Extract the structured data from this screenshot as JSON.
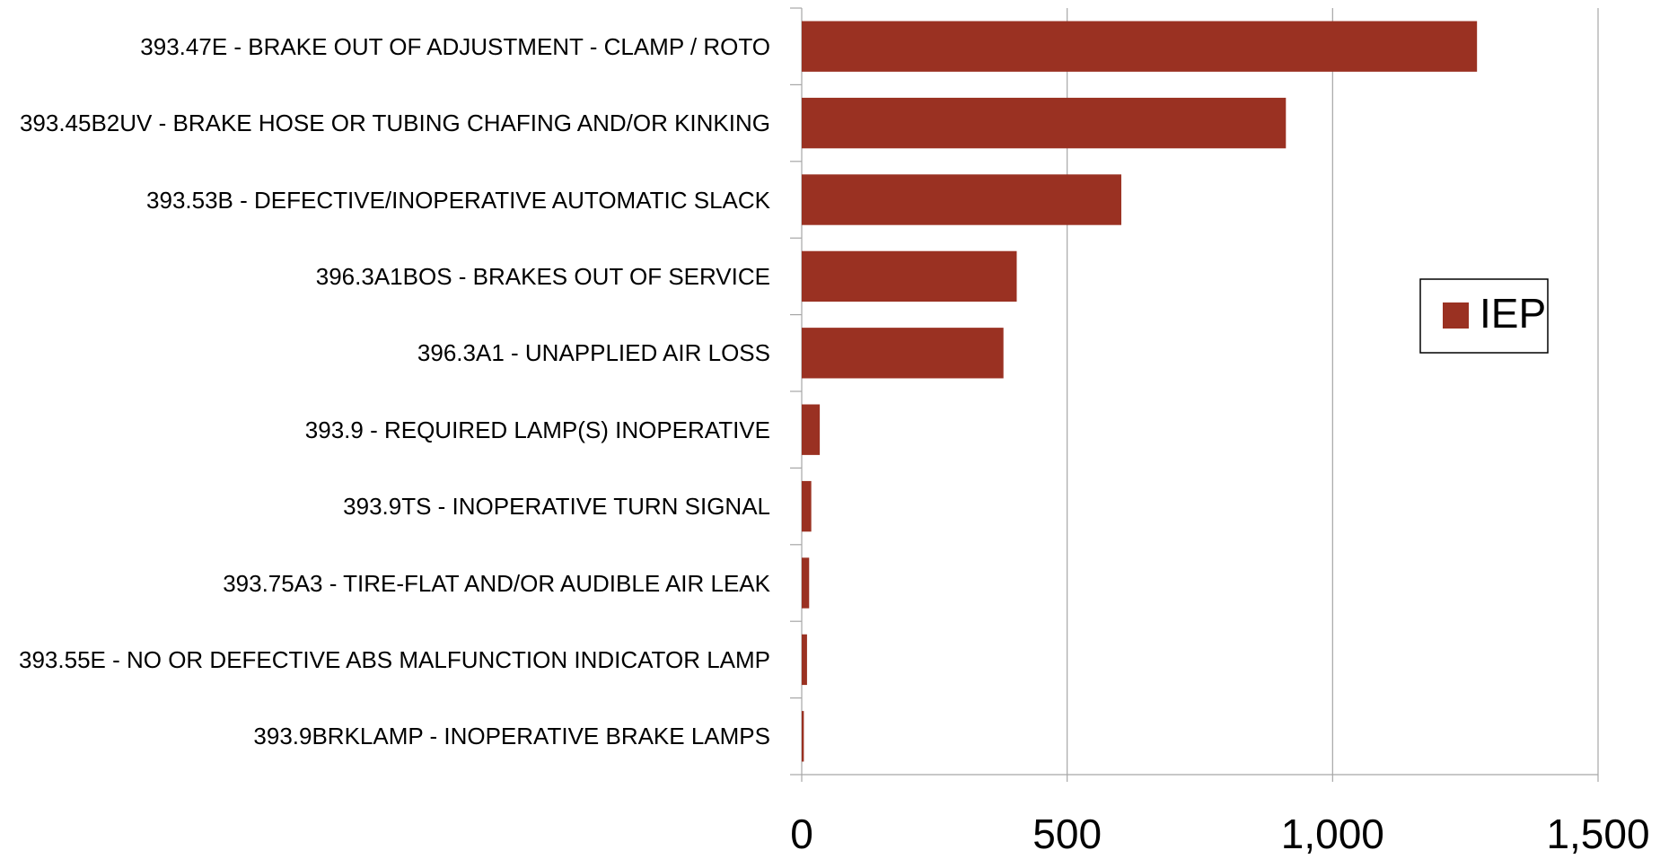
{
  "chart_data": {
    "type": "bar",
    "orientation": "horizontal",
    "categories": [
      "393.47E - BRAKE OUT OF ADJUSTMENT - CLAMP / ROTO",
      "393.45B2UV - BRAKE HOSE OR TUBING CHAFING AND/OR KINKING",
      "393.53B - DEFECTIVE/INOPERATIVE AUTOMATIC SLACK",
      "396.3A1BOS - BRAKES OUT OF SERVICE",
      "396.3A1 - UNAPPLIED AIR LOSS",
      "393.9 - REQUIRED LAMP(S) INOPERATIVE",
      "393.9TS - INOPERATIVE TURN SIGNAL",
      "393.75A3 - TIRE-FLAT AND/OR AUDIBLE AIR LEAK",
      "393.55E - NO OR DEFECTIVE ABS MALFUNCTION INDICATOR LAMP",
      "393.9BRKLAMP - INOPERATIVE BRAKE LAMPS"
    ],
    "series": [
      {
        "name": "IEP",
        "color": "#9a3122",
        "values": [
          1272,
          912,
          602,
          405,
          380,
          34,
          18,
          14,
          10,
          4
        ]
      }
    ],
    "xlim": [
      0,
      1500
    ],
    "xticks": [
      0,
      500,
      {
        "value": 1000,
        "label": "1,000"
      },
      {
        "value": 1500,
        "label": "1,500"
      }
    ],
    "grid": true,
    "legend": "right"
  }
}
